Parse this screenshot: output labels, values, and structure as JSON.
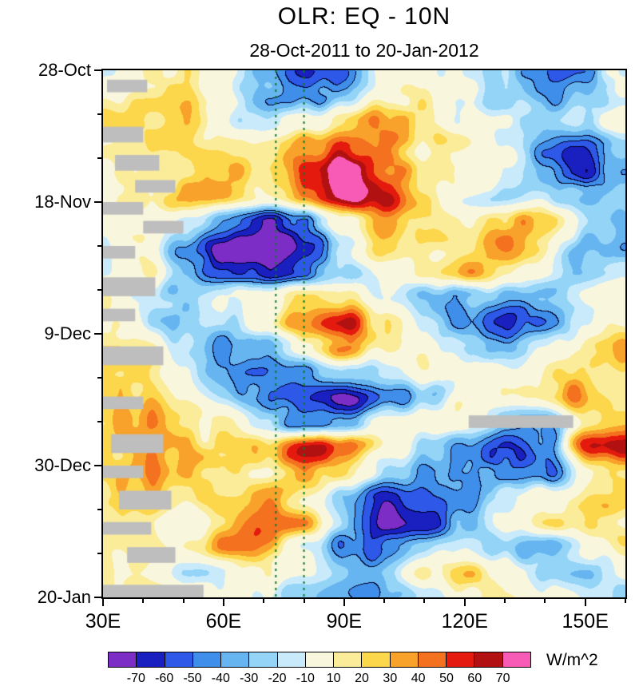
{
  "title": "OLR: EQ - 10N",
  "subtitle": "28-Oct-2011 to 20-Jan-2012",
  "axes": {
    "y": {
      "ticks": [
        {
          "label": "28-Oct",
          "day": 0
        },
        {
          "label": "18-Nov",
          "day": 21
        },
        {
          "label": "9-Dec",
          "day": 42
        },
        {
          "label": "30-Dec",
          "day": 63
        },
        {
          "label": "20-Jan",
          "day": 84
        }
      ],
      "minor_days": [
        7,
        14,
        28,
        35,
        49,
        56,
        70,
        77
      ],
      "range_days": [
        0,
        84
      ]
    },
    "x": {
      "ticks": [
        {
          "label": "30E",
          "lon": 30
        },
        {
          "label": "60E",
          "lon": 60
        },
        {
          "label": "90E",
          "lon": 90
        },
        {
          "label": "120E",
          "lon": 120
        },
        {
          "label": "150E",
          "lon": 150
        }
      ],
      "minor_lons": [
        40,
        50,
        70,
        80,
        100,
        110,
        130,
        140,
        160
      ],
      "range_lons": [
        30,
        160
      ]
    }
  },
  "colorbar": {
    "units": "W/m^2",
    "boundaries": [
      -70,
      -60,
      -50,
      -40,
      -30,
      -20,
      -10,
      10,
      20,
      30,
      40,
      50,
      60,
      70
    ],
    "colors": [
      "#7B2DC6",
      "#1A1FBF",
      "#2E58E8",
      "#3E8EEA",
      "#67B5F0",
      "#93D4F7",
      "#C9EAFB",
      "#F9F6DE",
      "#FBEC9A",
      "#FCD64B",
      "#F9A22B",
      "#F4711F",
      "#E41A0E",
      "#B21111",
      "#F75BB5"
    ]
  },
  "chart_data": {
    "type": "heatmap",
    "title": "OLR: EQ - 10N",
    "subtitle": "28-Oct-2011 to 20-Jan-2012",
    "value_units": "W/m^2",
    "x_longitudes": [
      30,
      40,
      50,
      60,
      70,
      80,
      90,
      100,
      110,
      120,
      130,
      140,
      150,
      160
    ],
    "y_days_from_28_Oct_2011": [
      0,
      4,
      8,
      12,
      16,
      20,
      24,
      28,
      32,
      36,
      40,
      44,
      48,
      52,
      56,
      60,
      64,
      68,
      72,
      76,
      80,
      84
    ],
    "values": [
      [
        5,
        15,
        10,
        -10,
        -40,
        -75,
        -55,
        -5,
        5,
        -5,
        -20,
        -40,
        -35,
        -15
      ],
      [
        10,
        25,
        20,
        -5,
        -45,
        -55,
        -30,
        0,
        10,
        -10,
        -30,
        -45,
        -30,
        -10
      ],
      [
        20,
        30,
        25,
        -15,
        -30,
        -10,
        10,
        25,
        5,
        -15,
        -25,
        -35,
        -20,
        0
      ],
      [
        15,
        25,
        15,
        5,
        10,
        30,
        45,
        30,
        5,
        10,
        -20,
        -45,
        -55,
        -30
      ],
      [
        10,
        20,
        10,
        25,
        20,
        50,
        70,
        45,
        15,
        5,
        -10,
        -35,
        -60,
        -45
      ],
      [
        5,
        15,
        25,
        35,
        15,
        45,
        75,
        60,
        25,
        -10,
        -25,
        -15,
        -30,
        -20
      ],
      [
        0,
        10,
        -10,
        -40,
        -60,
        -35,
        10,
        35,
        25,
        10,
        25,
        30,
        -10,
        -25
      ],
      [
        -5,
        5,
        -35,
        -75,
        -85,
        -60,
        -25,
        15,
        25,
        15,
        30,
        10,
        -35,
        -45
      ],
      [
        0,
        15,
        -20,
        -50,
        -60,
        -45,
        -30,
        -5,
        20,
        30,
        15,
        -10,
        -25,
        -15
      ],
      [
        10,
        -10,
        -25,
        -15,
        5,
        40,
        30,
        0,
        -25,
        -40,
        -30,
        -20,
        0,
        10
      ],
      [
        5,
        -15,
        -30,
        -20,
        10,
        50,
        65,
        25,
        -20,
        -60,
        -70,
        -40,
        -10,
        5
      ],
      [
        15,
        5,
        -20,
        -35,
        -30,
        0,
        30,
        15,
        -10,
        -35,
        -30,
        -10,
        15,
        20
      ],
      [
        25,
        15,
        -15,
        -30,
        -45,
        -50,
        -30,
        -10,
        5,
        -15,
        -5,
        10,
        25,
        15
      ],
      [
        30,
        20,
        0,
        -20,
        -50,
        -75,
        -85,
        -55,
        -20,
        0,
        5,
        15,
        35,
        25
      ],
      [
        35,
        30,
        15,
        5,
        -25,
        -55,
        -45,
        -10,
        10,
        -5,
        -30,
        -40,
        15,
        25
      ],
      [
        30,
        35,
        25,
        10,
        20,
        55,
        45,
        5,
        -15,
        -40,
        -60,
        -35,
        55,
        65
      ],
      [
        35,
        40,
        30,
        20,
        15,
        35,
        20,
        -15,
        -35,
        -30,
        -50,
        -45,
        10,
        20
      ],
      [
        25,
        30,
        20,
        30,
        35,
        10,
        -30,
        -55,
        -50,
        -40,
        -15,
        10,
        25,
        15
      ],
      [
        15,
        20,
        -10,
        15,
        40,
        30,
        -25,
        -65,
        -55,
        -25,
        5,
        20,
        15,
        5
      ],
      [
        20,
        25,
        10,
        35,
        25,
        -15,
        -45,
        -40,
        -15,
        0,
        -20,
        -35,
        -10,
        10
      ],
      [
        25,
        20,
        -15,
        -20,
        5,
        -10,
        -30,
        -20,
        10,
        20,
        5,
        -15,
        -20,
        -5
      ],
      [
        15,
        20,
        10,
        -5,
        -15,
        -25,
        -35,
        -30,
        -15,
        5,
        10,
        0,
        -10,
        -15
      ]
    ],
    "reference_lines": {
      "color": "#0E7A2E",
      "style": "dashed",
      "longitudes": [
        73,
        80
      ]
    },
    "missing_color": "#BEBEBE",
    "missing_regions": [
      {
        "lon": [
          31,
          41
        ],
        "day": [
          1.5,
          3.5
        ]
      },
      {
        "lon": [
          30,
          40
        ],
        "day": [
          9,
          11.5
        ]
      },
      {
        "lon": [
          33,
          44
        ],
        "day": [
          13.5,
          16
        ]
      },
      {
        "lon": [
          38,
          48
        ],
        "day": [
          17.5,
          19.5
        ]
      },
      {
        "lon": [
          30,
          40
        ],
        "day": [
          21,
          23
        ]
      },
      {
        "lon": [
          40,
          50
        ],
        "day": [
          24,
          26
        ]
      },
      {
        "lon": [
          30,
          38
        ],
        "day": [
          28,
          30
        ]
      },
      {
        "lon": [
          30,
          43
        ],
        "day": [
          33,
          36
        ]
      },
      {
        "lon": [
          30,
          38
        ],
        "day": [
          38,
          40
        ]
      },
      {
        "lon": [
          30,
          45
        ],
        "day": [
          44,
          47
        ]
      },
      {
        "lon": [
          30,
          40
        ],
        "day": [
          52,
          54
        ]
      },
      {
        "lon": [
          121,
          147
        ],
        "day": [
          55,
          57
        ]
      },
      {
        "lon": [
          32,
          45
        ],
        "day": [
          58,
          61
        ]
      },
      {
        "lon": [
          30,
          40
        ],
        "day": [
          63,
          65
        ]
      },
      {
        "lon": [
          34,
          47
        ],
        "day": [
          67,
          70
        ]
      },
      {
        "lon": [
          30,
          42
        ],
        "day": [
          72,
          74
        ]
      },
      {
        "lon": [
          36,
          48
        ],
        "day": [
          76,
          78.5
        ]
      },
      {
        "lon": [
          30,
          55
        ],
        "day": [
          82,
          84
        ]
      }
    ]
  }
}
